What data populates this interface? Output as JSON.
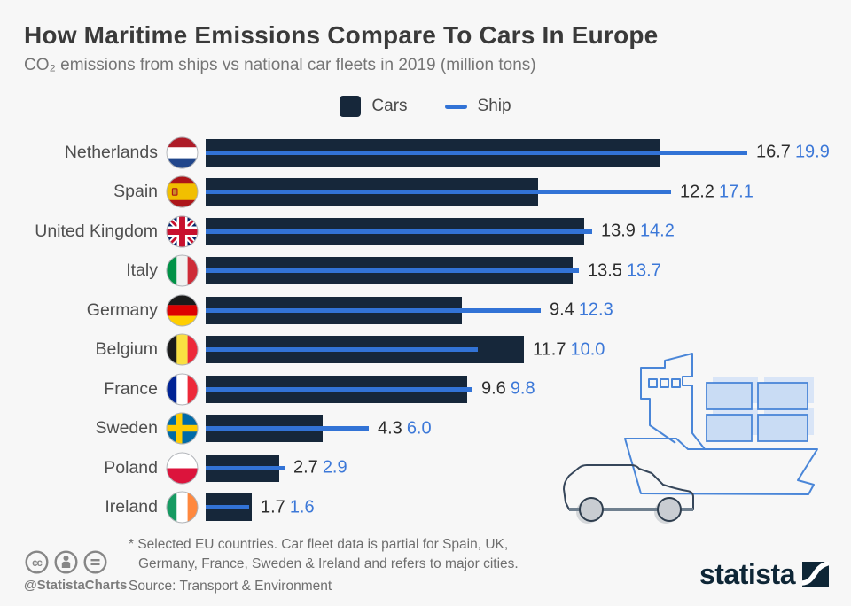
{
  "title": "How Maritime Emissions Compare To Cars In Europe",
  "subtitle": "CO₂ emissions from ships vs national car fleets in 2019 (million tons)",
  "legend": {
    "cars": "Cars",
    "ship": "Ship"
  },
  "chart_data": {
    "type": "bar",
    "orientation": "horizontal",
    "unit": "million tons CO2",
    "categories": [
      "Netherlands",
      "Spain",
      "United Kingdom",
      "Italy",
      "Germany",
      "Belgium",
      "France",
      "Sweden",
      "Poland",
      "Ireland"
    ],
    "flags": [
      "nl",
      "es",
      "gb",
      "it",
      "de",
      "be",
      "fr",
      "se",
      "pl",
      "ie"
    ],
    "series": [
      {
        "name": "Cars",
        "style": "bar",
        "values": [
          16.7,
          12.2,
          13.9,
          13.5,
          9.4,
          11.7,
          9.6,
          4.3,
          2.7,
          1.7
        ]
      },
      {
        "name": "Ship",
        "style": "line",
        "values": [
          19.9,
          17.1,
          14.2,
          13.7,
          12.3,
          10.0,
          9.8,
          6.0,
          2.9,
          1.6
        ]
      }
    ],
    "xlim": [
      0,
      21
    ],
    "grid": false,
    "legend_position": "top-center",
    "value_labels": "end-of-row"
  },
  "footnote_line1": "* Selected EU countries. Car fleet data is partial for Spain, UK,",
  "footnote_line2": "Germany, France, Sweden & Ireland and refers to major cities.",
  "source": "Source: Transport & Environment",
  "credit": "@StatistaCharts",
  "branding": "statista",
  "icons": [
    "cc-icon",
    "attribution-person-icon",
    "equals-icon",
    "statista-logo-mark",
    "container-ship-illustration",
    "car-illustration",
    "country-flag-icons"
  ],
  "colors": {
    "background": "#f7f7f7",
    "bar": "#16273a",
    "ship_line": "#3273d6",
    "ship_value_text": "#3c78d8",
    "cars_value_text": "#2d2d2d",
    "brand_navy": "#0e2636"
  }
}
